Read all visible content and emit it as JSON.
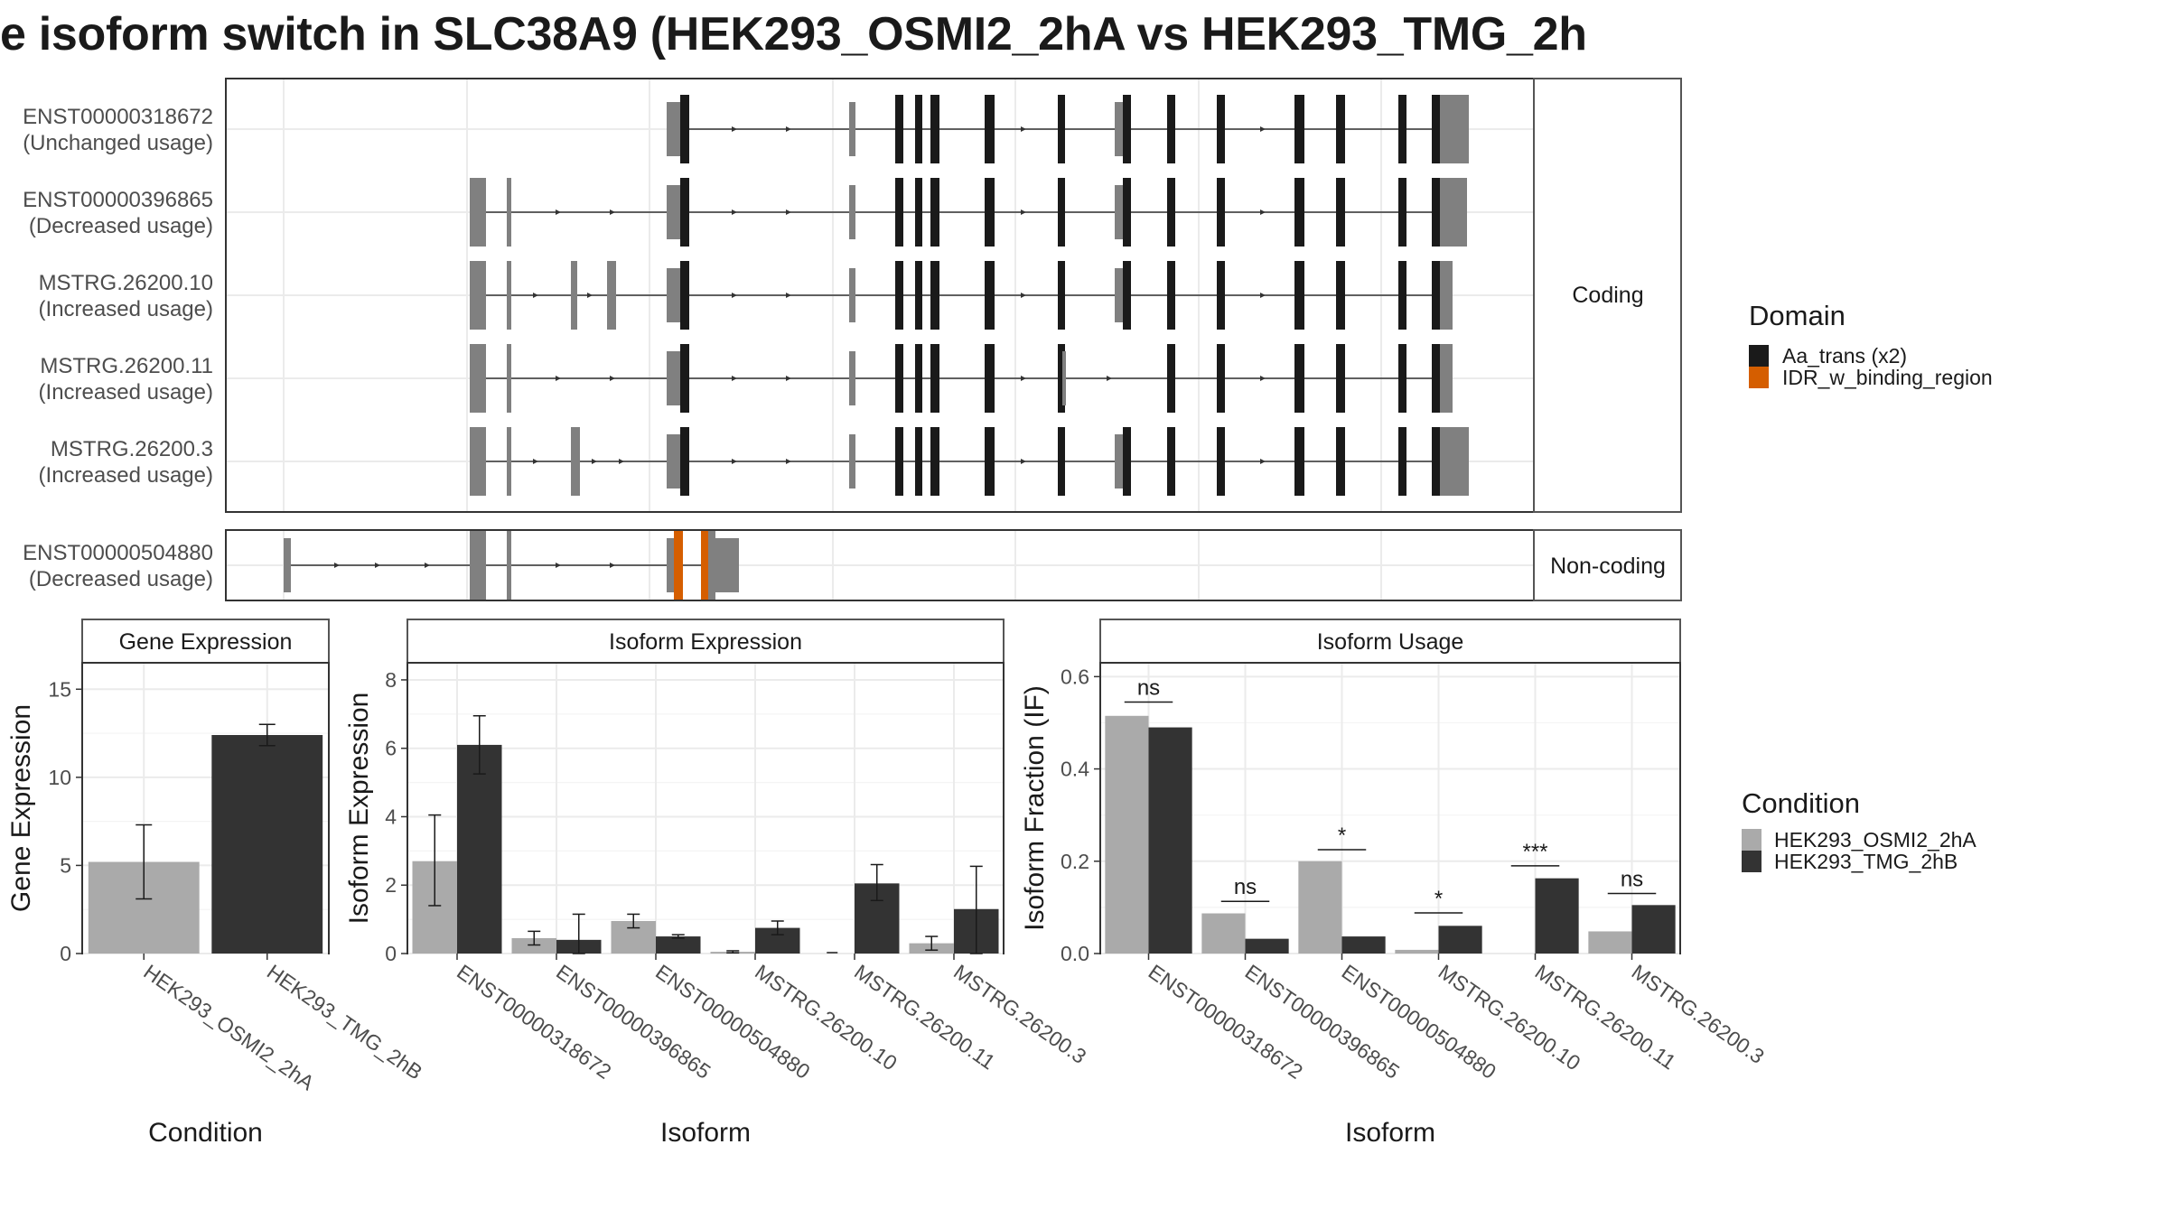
{
  "title": "e isoform switch in SLC38A9 (HEK293_OSMI2_2hA vs HEK293_TMG_2h",
  "colors": {
    "domain_aa_trans": "#1a1a1a",
    "domain_idr": "#d55e00",
    "exon": "#808080",
    "cond_a": "#aaaaaa",
    "cond_b": "#333333"
  },
  "structure": {
    "panel_labels": {
      "coding": "Coding",
      "noncoding": "Non-coding"
    },
    "transcripts": [
      {
        "id": "ENST00000318672",
        "usage": "(Unchanged usage)",
        "group": "coding"
      },
      {
        "id": "ENST00000396865",
        "usage": "(Decreased usage)",
        "group": "coding"
      },
      {
        "id": "MSTRG.26200.10",
        "usage": "(Increased usage)",
        "group": "coding"
      },
      {
        "id": "MSTRG.26200.11",
        "usage": "(Increased usage)",
        "group": "coding"
      },
      {
        "id": "MSTRG.26200.3",
        "usage": "(Increased usage)",
        "group": "coding"
      },
      {
        "id": "ENST00000504880",
        "usage": "(Decreased usage)",
        "group": "noncoding"
      }
    ]
  },
  "legend_domain": {
    "title": "Domain",
    "items": [
      {
        "label": "Aa_trans (x2)",
        "color": "#1a1a1a"
      },
      {
        "label": "IDR_w_binding_region",
        "color": "#d55e00"
      }
    ]
  },
  "legend_condition": {
    "title": "Condition",
    "items": [
      {
        "label": "HEK293_OSMI2_2hA",
        "color": "#aaaaaa"
      },
      {
        "label": "HEK293_TMG_2hB",
        "color": "#333333"
      }
    ]
  },
  "chart_data": [
    {
      "type": "bar",
      "title": "Gene Expression",
      "xlabel": "Condition",
      "ylabel": "Gene Expression",
      "ylim": [
        0,
        16.5
      ],
      "yticks": [
        0,
        5,
        10,
        15
      ],
      "categories": [
        "HEK293_OSMI2_2hA",
        "HEK293_TMG_2hB"
      ],
      "values": [
        5.2,
        12.4
      ],
      "error_low": [
        3.1,
        11.8
      ],
      "error_high": [
        7.3,
        13.0
      ]
    },
    {
      "type": "bar",
      "title": "Isoform Expression",
      "xlabel": "Isoform",
      "ylabel": "Isoform Expression",
      "ylim": [
        0,
        8.5
      ],
      "yticks": [
        0,
        2,
        4,
        6,
        8
      ],
      "categories": [
        "ENST00000318672",
        "ENST00000396865",
        "ENST00000504880",
        "MSTRG.26200.10",
        "MSTRG.26200.11",
        "MSTRG.26200.3"
      ],
      "series": [
        {
          "name": "HEK293_OSMI2_2hA",
          "values": [
            2.7,
            0.45,
            0.95,
            0.05,
            0.0,
            0.3
          ],
          "error_low": [
            1.4,
            0.25,
            0.75,
            0.02,
            0.0,
            0.1
          ],
          "error_high": [
            4.05,
            0.65,
            1.15,
            0.08,
            0.0,
            0.5
          ]
        },
        {
          "name": "HEK293_TMG_2hB",
          "values": [
            6.1,
            0.4,
            0.5,
            0.75,
            2.05,
            1.3
          ],
          "error_low": [
            5.25,
            0.0,
            0.45,
            0.55,
            1.55,
            0.0
          ],
          "error_high": [
            6.95,
            1.15,
            0.55,
            0.95,
            2.6,
            2.55
          ]
        }
      ]
    },
    {
      "type": "bar",
      "title": "Isoform Usage",
      "xlabel": "Isoform",
      "ylabel": "Isoform Fraction (IF)",
      "ylim": [
        0,
        0.63
      ],
      "yticks": [
        0,
        0.2,
        0.4,
        0.6
      ],
      "ytick_labels": [
        "0.0",
        "0.2",
        "0.4",
        "0.6"
      ],
      "categories": [
        "ENST00000318672",
        "ENST00000396865",
        "ENST00000504880",
        "MSTRG.26200.10",
        "MSTRG.26200.11",
        "MSTRG.26200.3"
      ],
      "series": [
        {
          "name": "HEK293_OSMI2_2hA",
          "values": [
            0.515,
            0.087,
            0.2,
            0.008,
            0.0,
            0.048
          ]
        },
        {
          "name": "HEK293_TMG_2hB",
          "values": [
            0.49,
            0.032,
            0.037,
            0.06,
            0.163,
            0.105
          ]
        }
      ],
      "significance": [
        {
          "label": "ns",
          "y": 0.545
        },
        {
          "label": "ns",
          "y": 0.113
        },
        {
          "label": "*",
          "y": 0.225
        },
        {
          "label": "*",
          "y": 0.088
        },
        {
          "label": "***",
          "y": 0.19
        },
        {
          "label": "ns",
          "y": 0.13
        }
      ]
    }
  ]
}
